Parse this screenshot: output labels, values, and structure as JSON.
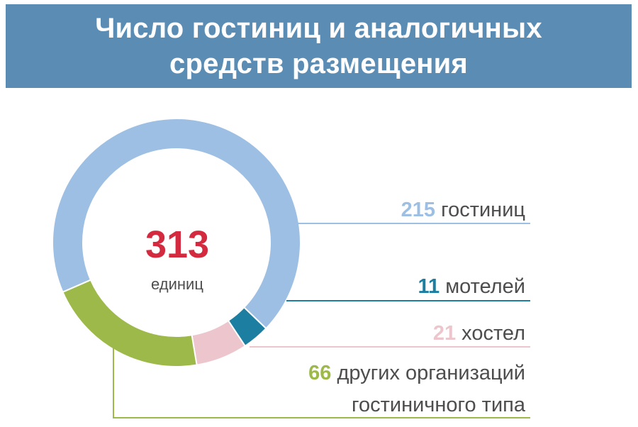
{
  "header": {
    "title_line1": "Число гостиниц и аналогичных",
    "title_line2": "средств размещения"
  },
  "colors": {
    "header_bg": "#5b8db4",
    "total": "#d42a3f",
    "text": "#4d4d4d"
  },
  "chart_data": {
    "type": "pie",
    "donut": true,
    "total": {
      "value": "313",
      "unit": "единиц"
    },
    "slices": [
      {
        "value": 215,
        "value_label": "215",
        "label": "гостиниц",
        "color": "#9dbfe3"
      },
      {
        "value": 11,
        "value_label": "11",
        "label": "мотелей",
        "color": "#1c7ea0"
      },
      {
        "value": 21,
        "value_label": "21",
        "label": "хостел",
        "color": "#ecc6cc"
      },
      {
        "value": 66,
        "value_label": "66",
        "label_line1": "других организаций",
        "label_line2": "гостиничного типа",
        "color": "#9cb94a"
      }
    ]
  }
}
